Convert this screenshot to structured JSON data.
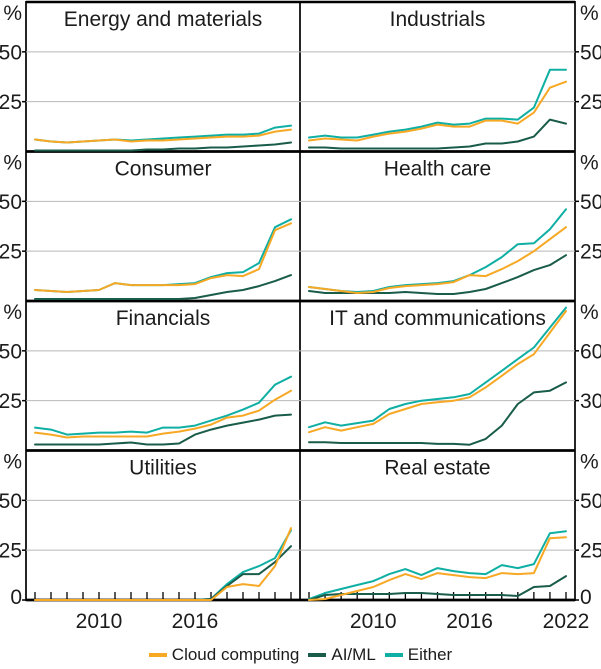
{
  "chart_data": {
    "type": "line",
    "unit": "%",
    "x_years": [
      2006,
      2007,
      2008,
      2009,
      2010,
      2011,
      2012,
      2013,
      2014,
      2015,
      2016,
      2017,
      2018,
      2019,
      2020,
      2021,
      2022
    ],
    "x_axis_labels": {
      "left_column": [
        2010,
        2016
      ],
      "right_column": [
        2010,
        2016,
        2022
      ]
    },
    "zero_label": "0",
    "grid_color": "#b8b8b8",
    "axis_color": "#000000",
    "legend": [
      {
        "key": "cloud_computing",
        "label": "Cloud computing",
        "color": "#F7A824"
      },
      {
        "key": "ai_ml",
        "label": "AI/ML",
        "color": "#1A5C4A"
      },
      {
        "key": "either",
        "label": "Either",
        "color": "#10AFA4"
      }
    ],
    "draw_order": [
      "either",
      "ai_ml",
      "cloud_computing"
    ],
    "panels": [
      {
        "title": "Energy and materials",
        "row": 0,
        "col": 0,
        "ylim": [
          0,
          75
        ],
        "yticks": [
          25,
          50
        ],
        "series": {
          "cloud_computing": [
            6,
            5,
            4.5,
            5,
            5.5,
            6,
            5,
            5.5,
            5.5,
            6,
            6.5,
            7,
            7.5,
            7.5,
            8,
            10,
            11
          ],
          "ai_ml": [
            0.5,
            0.5,
            0.5,
            0.5,
            0.5,
            0.5,
            0.5,
            1,
            1,
            1.5,
            1.5,
            2,
            2,
            2.5,
            3,
            3.5,
            4.5
          ],
          "either": [
            6,
            5,
            4.5,
            5,
            5.5,
            6,
            5.5,
            6,
            6.5,
            7,
            7.5,
            8,
            8.5,
            8.5,
            9,
            12,
            13
          ]
        }
      },
      {
        "title": "Industrials",
        "row": 0,
        "col": 1,
        "ylim": [
          0,
          75
        ],
        "yticks": [
          25,
          50
        ],
        "series": {
          "cloud_computing": [
            5.5,
            6.5,
            6,
            5.5,
            7.5,
            9,
            10,
            11.5,
            13.5,
            12.5,
            12.5,
            15.5,
            15.5,
            14,
            19.5,
            32,
            35
          ],
          "ai_ml": [
            2,
            2,
            1.5,
            1.5,
            1.5,
            1.5,
            1.5,
            1.5,
            1.5,
            2,
            2.5,
            4,
            4,
            5,
            7.5,
            16,
            14
          ],
          "either": [
            7,
            8,
            7,
            7,
            8.5,
            10,
            11,
            12.5,
            14.5,
            13.5,
            14,
            16.5,
            16.5,
            16,
            22,
            41,
            41
          ]
        }
      },
      {
        "title": "Consumer",
        "row": 1,
        "col": 0,
        "ylim": [
          0,
          75
        ],
        "yticks": [
          25,
          50
        ],
        "series": {
          "cloud_computing": [
            5.5,
            5,
            4.5,
            5,
            5.5,
            9,
            8,
            8,
            8,
            8,
            8.5,
            11.5,
            13,
            12.5,
            16,
            35.5,
            39
          ],
          "ai_ml": [
            1,
            1,
            1,
            1,
            1,
            1,
            1,
            1,
            1,
            1,
            1.5,
            3,
            4.5,
            5.5,
            7.5,
            10,
            13
          ],
          "either": [
            5.5,
            5,
            4.5,
            5,
            5.5,
            9,
            8,
            8,
            8,
            8.5,
            9,
            12,
            14,
            14.5,
            19,
            37,
            41
          ]
        }
      },
      {
        "title": "Health care",
        "row": 1,
        "col": 1,
        "ylim": [
          0,
          75
        ],
        "yticks": [
          25,
          50
        ],
        "series": {
          "cloud_computing": [
            7,
            6,
            5,
            4,
            4.5,
            6.5,
            7.5,
            8,
            8.5,
            9.5,
            13,
            12.5,
            16,
            20,
            25,
            31,
            37
          ],
          "ai_ml": [
            5,
            4,
            4,
            4,
            4,
            4,
            4.5,
            4,
            3.5,
            3.5,
            4.5,
            6,
            9,
            12,
            15.5,
            18,
            23
          ],
          "either": [
            7,
            6,
            5,
            4.5,
            5,
            7,
            8,
            8.5,
            9,
            10,
            13,
            17,
            22,
            28.5,
            29,
            36,
            46
          ]
        }
      },
      {
        "title": "Financials",
        "row": 2,
        "col": 0,
        "ylim": [
          0,
          75
        ],
        "yticks": [
          25,
          50
        ],
        "series": {
          "cloud_computing": [
            9,
            8,
            6.5,
            7,
            7,
            7,
            7,
            7,
            8.5,
            9.5,
            11,
            13,
            16.5,
            17.5,
            20,
            25.5,
            30
          ],
          "ai_ml": [
            3,
            3,
            3,
            3,
            3,
            3.5,
            4,
            3,
            3,
            3.5,
            8,
            10.5,
            12.5,
            14,
            15.5,
            17.5,
            18
          ],
          "either": [
            11.5,
            10.5,
            8,
            8.5,
            9,
            9,
            9.5,
            9,
            11.5,
            11.5,
            12.5,
            15,
            17.5,
            20.5,
            24,
            33,
            37
          ]
        }
      },
      {
        "title": "IT and communications",
        "row": 2,
        "col": 1,
        "ylim": [
          0,
          90
        ],
        "yticks": [
          30,
          60
        ],
        "series": {
          "cloud_computing": [
            11,
            14,
            12,
            14,
            16,
            22,
            25,
            28,
            29,
            30,
            32,
            38,
            45,
            52,
            58,
            71,
            84
          ],
          "ai_ml": [
            5,
            5,
            4.5,
            4.5,
            4.5,
            4.5,
            4.5,
            4.5,
            4,
            4,
            3.5,
            7,
            15,
            28,
            35,
            36,
            41
          ],
          "either": [
            14,
            17,
            15,
            16.5,
            18,
            25,
            28,
            30,
            31,
            32,
            34,
            41,
            48,
            55,
            62,
            74,
            86
          ]
        }
      },
      {
        "title": "Utilities",
        "row": 3,
        "col": 0,
        "ylim": [
          0,
          75
        ],
        "yticks": [
          0,
          25,
          50
        ],
        "series": {
          "cloud_computing": [
            0,
            0,
            0,
            0,
            0,
            0,
            0,
            0,
            0,
            0,
            0,
            0,
            6.5,
            8,
            7,
            17,
            36
          ],
          "ai_ml": [
            0,
            0,
            0,
            0,
            0,
            0,
            0,
            0,
            0,
            0,
            0,
            0.5,
            7,
            13,
            13,
            19,
            27
          ],
          "either": [
            0,
            0,
            0,
            0,
            0,
            0,
            0,
            0,
            0,
            0,
            0,
            0.5,
            8,
            14,
            17,
            21,
            35
          ]
        }
      },
      {
        "title": "Real estate",
        "row": 3,
        "col": 1,
        "ylim": [
          0,
          75
        ],
        "yticks": [
          0,
          25,
          50
        ],
        "series": {
          "cloud_computing": [
            0,
            0.5,
            2.5,
            4.5,
            6.5,
            10,
            13,
            10.5,
            13.5,
            12.5,
            11.5,
            11,
            13.5,
            13,
            13.5,
            31,
            31.5
          ],
          "ai_ml": [
            0,
            2.5,
            3,
            3,
            3,
            3,
            3.5,
            3.5,
            3,
            2.5,
            2.5,
            2.5,
            2.5,
            2,
            6.5,
            7,
            12
          ],
          "either": [
            0.5,
            3.5,
            5.5,
            7.5,
            9.5,
            13,
            15.5,
            12.5,
            16,
            14.5,
            13.5,
            13,
            17.5,
            16,
            18,
            33.5,
            34.5
          ]
        }
      }
    ]
  }
}
